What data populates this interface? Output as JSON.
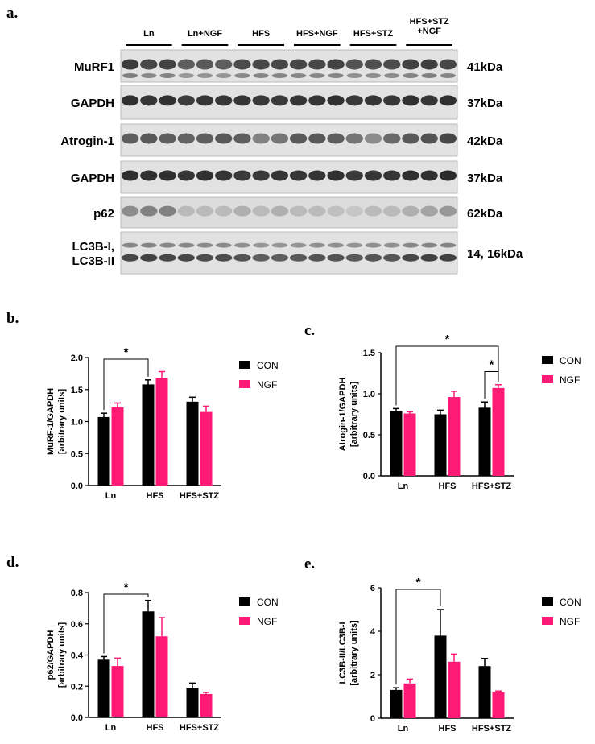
{
  "panels": {
    "a": "a.",
    "b": "b.",
    "c": "c.",
    "d": "d.",
    "e": "e."
  },
  "blot": {
    "groups": [
      "Ln",
      "Ln+NGF",
      "HFS",
      "HFS+NGF",
      "HFS+STZ",
      "HFS+STZ\n+NGF"
    ],
    "rows": [
      {
        "label": "MuRF1",
        "size": "41kDa"
      },
      {
        "label": "GAPDH",
        "size": "37kDa"
      },
      {
        "label": "Atrogin-1",
        "size": "42kDa"
      },
      {
        "label": "GAPDH",
        "size": "37kDa"
      },
      {
        "label": "p62",
        "size": "62kDa"
      },
      {
        "label": "LC3B-I,\nLC3B-II",
        "size": "14, 16kDa"
      }
    ]
  },
  "chart_data": [
    {
      "id": "b",
      "type": "bar",
      "categories": [
        "Ln",
        "HFS",
        "HFS+STZ"
      ],
      "series": [
        {
          "name": "CON",
          "color": "#000000",
          "values": [
            1.07,
            1.58,
            1.31
          ],
          "errors": [
            0.06,
            0.07,
            0.07
          ]
        },
        {
          "name": "NGF",
          "color": "#ff1a75",
          "values": [
            1.22,
            1.68,
            1.15
          ],
          "errors": [
            0.07,
            0.1,
            0.09
          ]
        }
      ],
      "ylabel": "MuRF-1/GAPDH\n[arbitrary units]",
      "ylim": [
        0,
        2.0
      ],
      "yticks": [
        "0.0",
        "0.5",
        "1.0",
        "1.5",
        "2.0"
      ],
      "significance": [
        {
          "from": 0,
          "to": 1,
          "series": 0,
          "label": "*"
        }
      ],
      "legend": "right"
    },
    {
      "id": "c",
      "type": "bar",
      "categories": [
        "Ln",
        "HFS",
        "HFS+STZ"
      ],
      "series": [
        {
          "name": "CON",
          "color": "#000000",
          "values": [
            0.79,
            0.75,
            0.83
          ],
          "errors": [
            0.03,
            0.05,
            0.07
          ]
        },
        {
          "name": "NGF",
          "color": "#ff1a75",
          "values": [
            0.76,
            0.96,
            1.07
          ],
          "errors": [
            0.02,
            0.07,
            0.04
          ]
        }
      ],
      "ylabel": "Atrogin-1/GAPDH\n[arbitrary units]",
      "ylim": [
        0,
        1.5
      ],
      "yticks": [
        "0.0",
        "0.5",
        "1.0",
        "1.5"
      ],
      "significance": [
        {
          "from": 0,
          "to": 2,
          "series": 0,
          "toSeries": 1,
          "label": "*",
          "level": 0
        },
        {
          "from": 2,
          "to": 2,
          "series": 0,
          "toSeries": 1,
          "label": "*",
          "level": 1
        }
      ],
      "legend": "right"
    },
    {
      "id": "d",
      "type": "bar",
      "categories": [
        "Ln",
        "HFS",
        "HFS+STZ"
      ],
      "series": [
        {
          "name": "CON",
          "color": "#000000",
          "values": [
            0.37,
            0.68,
            0.19
          ],
          "errors": [
            0.02,
            0.07,
            0.03
          ]
        },
        {
          "name": "NGF",
          "color": "#ff1a75",
          "values": [
            0.33,
            0.52,
            0.15
          ],
          "errors": [
            0.05,
            0.12,
            0.01
          ]
        }
      ],
      "ylabel": "p62/GAPDH\n[arbitrary units]",
      "ylim": [
        0,
        0.8
      ],
      "yticks": [
        "0.0",
        "0.2",
        "0.4",
        "0.6",
        "0.8"
      ],
      "significance": [
        {
          "from": 0,
          "to": 1,
          "series": 0,
          "label": "*"
        }
      ],
      "legend": "right"
    },
    {
      "id": "e",
      "type": "bar",
      "categories": [
        "Ln",
        "HFS",
        "HFS+STZ"
      ],
      "series": [
        {
          "name": "CON",
          "color": "#000000",
          "values": [
            1.3,
            3.8,
            2.4
          ],
          "errors": [
            0.1,
            1.2,
            0.35
          ]
        },
        {
          "name": "NGF",
          "color": "#ff1a75",
          "values": [
            1.6,
            2.6,
            1.2
          ],
          "errors": [
            0.2,
            0.35,
            0.05
          ]
        }
      ],
      "ylabel": "LC3B-II/LC3B-I\n[arbitrary units]",
      "ylim": [
        0,
        6
      ],
      "yticks": [
        "0",
        "2",
        "4",
        "6"
      ],
      "significance": [
        {
          "from": 0,
          "to": 1,
          "series": 0,
          "label": "*"
        }
      ],
      "legend": "right"
    }
  ]
}
